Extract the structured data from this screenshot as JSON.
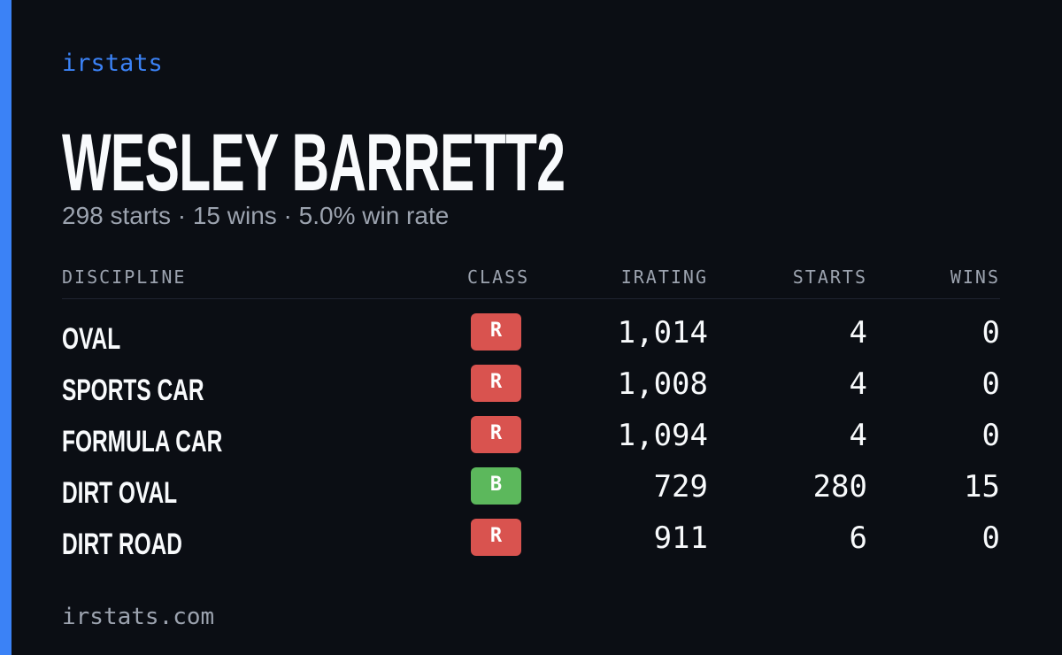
{
  "header": {
    "brand": "irstats",
    "title": "WESLEY BARRETT2",
    "subtitle": "298 starts · 15 wins · 5.0% win rate"
  },
  "table": {
    "columns": [
      "DISCIPLINE",
      "CLASS",
      "IRATING",
      "STARTS",
      "WINS"
    ],
    "rows": [
      {
        "discipline": "OVAL",
        "class": "R",
        "class_color": "#d9534f",
        "irating": "1,014",
        "starts": "4",
        "wins": "0"
      },
      {
        "discipline": "SPORTS CAR",
        "class": "R",
        "class_color": "#d9534f",
        "irating": "1,008",
        "starts": "4",
        "wins": "0"
      },
      {
        "discipline": "FORMULA CAR",
        "class": "R",
        "class_color": "#d9534f",
        "irating": "1,094",
        "starts": "4",
        "wins": "0"
      },
      {
        "discipline": "DIRT OVAL",
        "class": "B",
        "class_color": "#5cb85c",
        "irating": "729",
        "starts": "280",
        "wins": "15"
      },
      {
        "discipline": "DIRT ROAD",
        "class": "R",
        "class_color": "#d9534f",
        "irating": "911",
        "starts": "6",
        "wins": "0"
      }
    ]
  },
  "footer": {
    "url": "irstats.com"
  }
}
